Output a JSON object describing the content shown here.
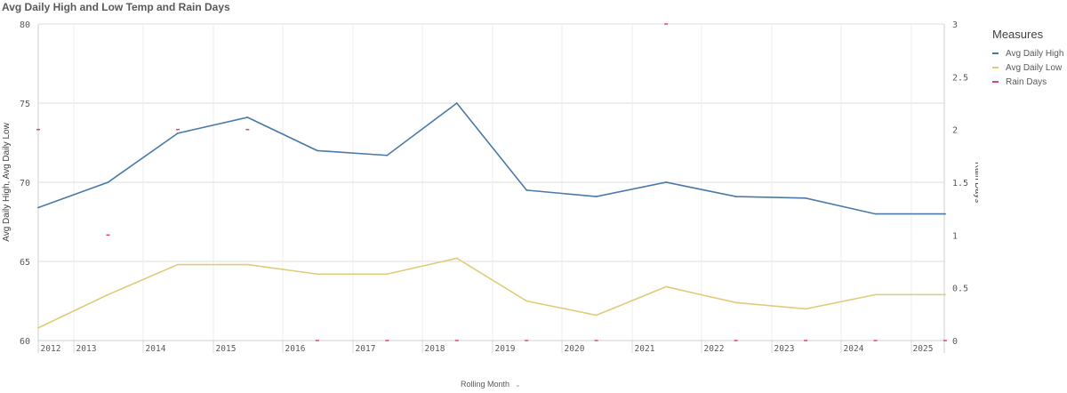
{
  "chart_data": {
    "type": "line",
    "title": "Avg Daily High and Low Temp and Rain Days",
    "xlabel": "Rolling Month",
    "ylabel": "Avg Daily High, Avg Daily Low",
    "y2label": "Rain Days",
    "ylim": [
      60,
      80
    ],
    "y2lim": [
      0,
      3
    ],
    "y_ticks": [
      "60",
      "65",
      "70",
      "75",
      "80"
    ],
    "y2_ticks": [
      "0",
      "0.5",
      "1",
      "1.5",
      "2",
      "2.5",
      "3"
    ],
    "x_ticks": [
      "2012",
      "2013",
      "2014",
      "2015",
      "2016",
      "2017",
      "2018",
      "2019",
      "2020",
      "2021",
      "2022",
      "2023",
      "2024",
      "2025"
    ],
    "grid": true,
    "legend_position": "top-right",
    "x": [
      0,
      1,
      2,
      3,
      4,
      5,
      6,
      7,
      8,
      9,
      10,
      11,
      12,
      13
    ],
    "series": [
      {
        "name": "Avg Daily High",
        "axis": "left",
        "color": "#4a7aa8",
        "values": [
          68.4,
          70.0,
          73.1,
          74.1,
          72.0,
          71.7,
          75.0,
          69.5,
          69.1,
          70.0,
          69.1,
          69.0,
          68.0,
          68.0
        ]
      },
      {
        "name": "Avg Daily Low",
        "axis": "left",
        "color": "#dfcc78",
        "values": [
          60.8,
          62.9,
          64.8,
          64.8,
          64.2,
          64.2,
          65.2,
          62.5,
          61.6,
          63.4,
          62.4,
          62.0,
          62.9,
          62.9
        ]
      },
      {
        "name": "Rain Days",
        "axis": "right",
        "color": "#e0446a",
        "style": "markers",
        "values": [
          2,
          1,
          2,
          2,
          0,
          0,
          0,
          0,
          0,
          3,
          0,
          0,
          0,
          0
        ]
      }
    ]
  },
  "legend": {
    "title": "Measures",
    "items": [
      {
        "label": "Avg Daily High",
        "color": "#4a7aa8"
      },
      {
        "label": "Avg Daily Low",
        "color": "#dfcc78"
      },
      {
        "label": "Rain Days",
        "color": "#e0446a"
      }
    ]
  },
  "xaxis_control": {
    "label": "Rolling Month",
    "icon": "chevron-down-icon"
  }
}
